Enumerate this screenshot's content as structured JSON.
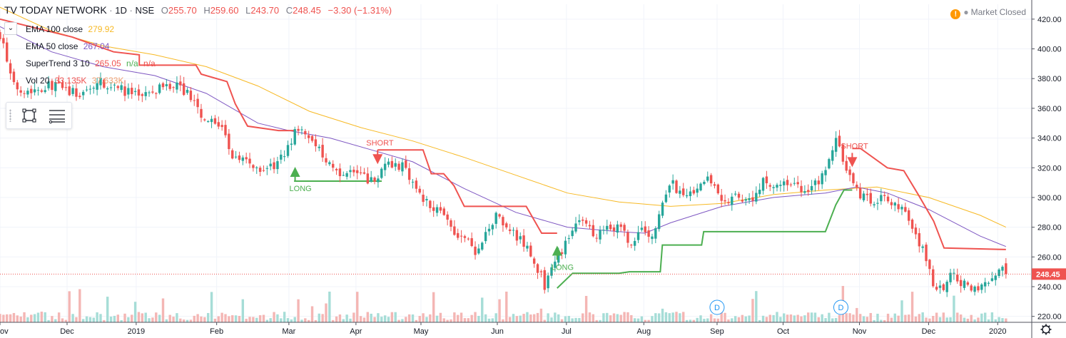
{
  "header": {
    "symbol": "TV TODAY NETWORK",
    "interval": "1D",
    "exchange": "NSE",
    "open_label": "O",
    "open": "255.70",
    "high_label": "H",
    "high": "259.60",
    "low_label": "L",
    "low": "243.70",
    "close_label": "C",
    "close": "248.45",
    "change": "−3.30 (−1.31%)",
    "status": "Market Closed"
  },
  "indicators": [
    {
      "label": "EMA 100 close",
      "values": [
        "279.92"
      ],
      "color": "#f7b924"
    },
    {
      "label": "EMA 50 close",
      "values": [
        "267.04"
      ],
      "color": "#7e57c2"
    },
    {
      "label": "SuperTrend 3 10",
      "values": [
        "265.05",
        "n/a",
        "n/a"
      ],
      "colors": [
        "#ef5350",
        "#4caf50",
        "#ef5350"
      ]
    },
    {
      "label": "Vol 20",
      "values": [
        "33.135K",
        "37.633K"
      ],
      "colors": [
        "#ef5350",
        "#f0a070"
      ]
    }
  ],
  "colors": {
    "up": "#26a69a",
    "down": "#ef5350",
    "st_up": "#4caf50",
    "st_down": "#ef5350",
    "ema100": "#f7b924",
    "ema50": "#7e57c2",
    "price_tag": "#ef5350"
  },
  "chart_data": {
    "type": "candlestick",
    "ylim": [
      216,
      430
    ],
    "y_ticks": [
      "220.00",
      "240.00",
      "260.00",
      "280.00",
      "300.00",
      "320.00",
      "340.00",
      "360.00",
      "380.00",
      "400.00",
      "420.00"
    ],
    "x_labels": [
      {
        "label": "ov",
        "t": 0.0
      },
      {
        "label": "Dec",
        "t": 0.065
      },
      {
        "label": "2019",
        "t": 0.132
      },
      {
        "label": "Feb",
        "t": 0.21
      },
      {
        "label": "Mar",
        "t": 0.28
      },
      {
        "label": "Apr",
        "t": 0.345
      },
      {
        "label": "May",
        "t": 0.408
      },
      {
        "label": "Jun",
        "t": 0.482
      },
      {
        "label": "Jul",
        "t": 0.549
      },
      {
        "label": "Aug",
        "t": 0.624
      },
      {
        "label": "Sep",
        "t": 0.695
      },
      {
        "label": "Oct",
        "t": 0.759
      },
      {
        "label": "Nov",
        "t": 0.833
      },
      {
        "label": "Dec",
        "t": 0.9
      },
      {
        "label": "2020",
        "t": 0.967
      }
    ],
    "last_price": "248.45",
    "close_path": [
      [
        0.0,
        410
      ],
      [
        0.005,
        398
      ],
      [
        0.012,
        375
      ],
      [
        0.03,
        372
      ],
      [
        0.05,
        376
      ],
      [
        0.065,
        372
      ],
      [
        0.08,
        368
      ],
      [
        0.095,
        378
      ],
      [
        0.11,
        374
      ],
      [
        0.13,
        369
      ],
      [
        0.15,
        372
      ],
      [
        0.17,
        376
      ],
      [
        0.185,
        368
      ],
      [
        0.2,
        350
      ],
      [
        0.21,
        352
      ],
      [
        0.22,
        338
      ],
      [
        0.228,
        325
      ],
      [
        0.24,
        325
      ],
      [
        0.255,
        318
      ],
      [
        0.268,
        322
      ],
      [
        0.278,
        330
      ],
      [
        0.286,
        347
      ],
      [
        0.296,
        340
      ],
      [
        0.31,
        332
      ],
      [
        0.322,
        320
      ],
      [
        0.335,
        316
      ],
      [
        0.345,
        318
      ],
      [
        0.36,
        311
      ],
      [
        0.375,
        323
      ],
      [
        0.392,
        320
      ],
      [
        0.402,
        308
      ],
      [
        0.412,
        298
      ],
      [
        0.425,
        292
      ],
      [
        0.44,
        278
      ],
      [
        0.452,
        272
      ],
      [
        0.462,
        260
      ],
      [
        0.472,
        276
      ],
      [
        0.482,
        290
      ],
      [
        0.49,
        282
      ],
      [
        0.5,
        275
      ],
      [
        0.51,
        266
      ],
      [
        0.518,
        258
      ],
      [
        0.528,
        240
      ],
      [
        0.538,
        258
      ],
      [
        0.548,
        268
      ],
      [
        0.556,
        280
      ],
      [
        0.566,
        283
      ],
      [
        0.576,
        275
      ],
      [
        0.59,
        282
      ],
      [
        0.602,
        278
      ],
      [
        0.612,
        268
      ],
      [
        0.624,
        280
      ],
      [
        0.632,
        272
      ],
      [
        0.642,
        297
      ],
      [
        0.652,
        310
      ],
      [
        0.662,
        298
      ],
      [
        0.674,
        306
      ],
      [
        0.688,
        312
      ],
      [
        0.7,
        295
      ],
      [
        0.712,
        300
      ],
      [
        0.725,
        296
      ],
      [
        0.74,
        312
      ],
      [
        0.752,
        305
      ],
      [
        0.768,
        310
      ],
      [
        0.78,
        302
      ],
      [
        0.79,
        308
      ],
      [
        0.8,
        318
      ],
      [
        0.81,
        338
      ],
      [
        0.818,
        326
      ],
      [
        0.826,
        308
      ],
      [
        0.834,
        302
      ],
      [
        0.846,
        298
      ],
      [
        0.856,
        302
      ],
      [
        0.866,
        295
      ],
      [
        0.876,
        290
      ],
      [
        0.886,
        275
      ],
      [
        0.896,
        262
      ],
      [
        0.904,
        243
      ],
      [
        0.912,
        237
      ],
      [
        0.922,
        248
      ],
      [
        0.934,
        242
      ],
      [
        0.946,
        240
      ],
      [
        0.956,
        244
      ],
      [
        0.964,
        246
      ],
      [
        0.97,
        252
      ],
      [
        0.975,
        248.45
      ]
    ],
    "ema100": [
      [
        0.0,
        428
      ],
      [
        0.05,
        412
      ],
      [
        0.1,
        402
      ],
      [
        0.15,
        396
      ],
      [
        0.2,
        388
      ],
      [
        0.25,
        375
      ],
      [
        0.3,
        358
      ],
      [
        0.35,
        347
      ],
      [
        0.4,
        338
      ],
      [
        0.45,
        327
      ],
      [
        0.5,
        315
      ],
      [
        0.55,
        303
      ],
      [
        0.6,
        297
      ],
      [
        0.65,
        294
      ],
      [
        0.7,
        296
      ],
      [
        0.75,
        302
      ],
      [
        0.8,
        305
      ],
      [
        0.85,
        307
      ],
      [
        0.9,
        300
      ],
      [
        0.95,
        288
      ],
      [
        0.975,
        280
      ]
    ],
    "ema50": [
      [
        0.0,
        415
      ],
      [
        0.05,
        398
      ],
      [
        0.1,
        388
      ],
      [
        0.15,
        382
      ],
      [
        0.2,
        370
      ],
      [
        0.25,
        350
      ],
      [
        0.28,
        345
      ],
      [
        0.32,
        340
      ],
      [
        0.36,
        332
      ],
      [
        0.4,
        324
      ],
      [
        0.45,
        306
      ],
      [
        0.5,
        290
      ],
      [
        0.55,
        280
      ],
      [
        0.6,
        277
      ],
      [
        0.625,
        276
      ],
      [
        0.65,
        283
      ],
      [
        0.7,
        294
      ],
      [
        0.75,
        300
      ],
      [
        0.8,
        303
      ],
      [
        0.83,
        307
      ],
      [
        0.86,
        303
      ],
      [
        0.9,
        292
      ],
      [
        0.95,
        274
      ],
      [
        0.975,
        267
      ]
    ],
    "supertrend": [
      {
        "dir": "down",
        "points": [
          [
            0.0,
            420
          ],
          [
            0.07,
            408
          ],
          [
            0.11,
            398
          ],
          [
            0.135,
            396
          ],
          [
            0.135,
            389
          ],
          [
            0.19,
            389
          ],
          [
            0.195,
            383
          ],
          [
            0.22,
            378
          ],
          [
            0.228,
            363
          ],
          [
            0.24,
            348
          ],
          [
            0.27,
            345
          ],
          [
            0.285,
            345
          ]
        ]
      },
      {
        "dir": "up",
        "points": [
          [
            0.285,
            311
          ],
          [
            0.37,
            311
          ]
        ]
      },
      {
        "dir": "down",
        "points": [
          [
            0.366,
            332
          ],
          [
            0.368,
            332
          ],
          [
            0.37,
            332
          ],
          [
            0.41,
            332
          ],
          [
            0.418,
            316
          ],
          [
            0.43,
            316
          ],
          [
            0.44,
            308
          ],
          [
            0.45,
            294
          ],
          [
            0.51,
            294
          ],
          [
            0.525,
            276
          ],
          [
            0.54,
            276
          ]
        ]
      },
      {
        "dir": "up",
        "points": [
          [
            0.54,
            239
          ],
          [
            0.555,
            249
          ],
          [
            0.6,
            249
          ],
          [
            0.61,
            250
          ],
          [
            0.64,
            250
          ],
          [
            0.642,
            268
          ],
          [
            0.68,
            268
          ],
          [
            0.682,
            277
          ],
          [
            0.8,
            277
          ],
          [
            0.81,
            295
          ],
          [
            0.818,
            305
          ],
          [
            0.826,
            305
          ]
        ]
      },
      {
        "dir": "down",
        "points": [
          [
            0.826,
            333
          ],
          [
            0.834,
            333
          ],
          [
            0.86,
            320
          ],
          [
            0.876,
            318
          ],
          [
            0.89,
            302
          ],
          [
            0.905,
            284
          ],
          [
            0.915,
            266
          ],
          [
            0.975,
            265
          ]
        ]
      }
    ],
    "signals": [
      {
        "type": "long",
        "label": "LONG",
        "t": 0.286,
        "price": 311
      },
      {
        "type": "short",
        "label": "SHORT",
        "t": 0.366,
        "price": 332
      },
      {
        "type": "long",
        "label": "LONG",
        "t": 0.54,
        "price": 258
      },
      {
        "type": "short",
        "label": "SHORT",
        "t": 0.826,
        "price": 330
      }
    ],
    "events": [
      {
        "label": "D",
        "t": 0.695
      },
      {
        "label": "D",
        "t": 0.815
      }
    ]
  }
}
